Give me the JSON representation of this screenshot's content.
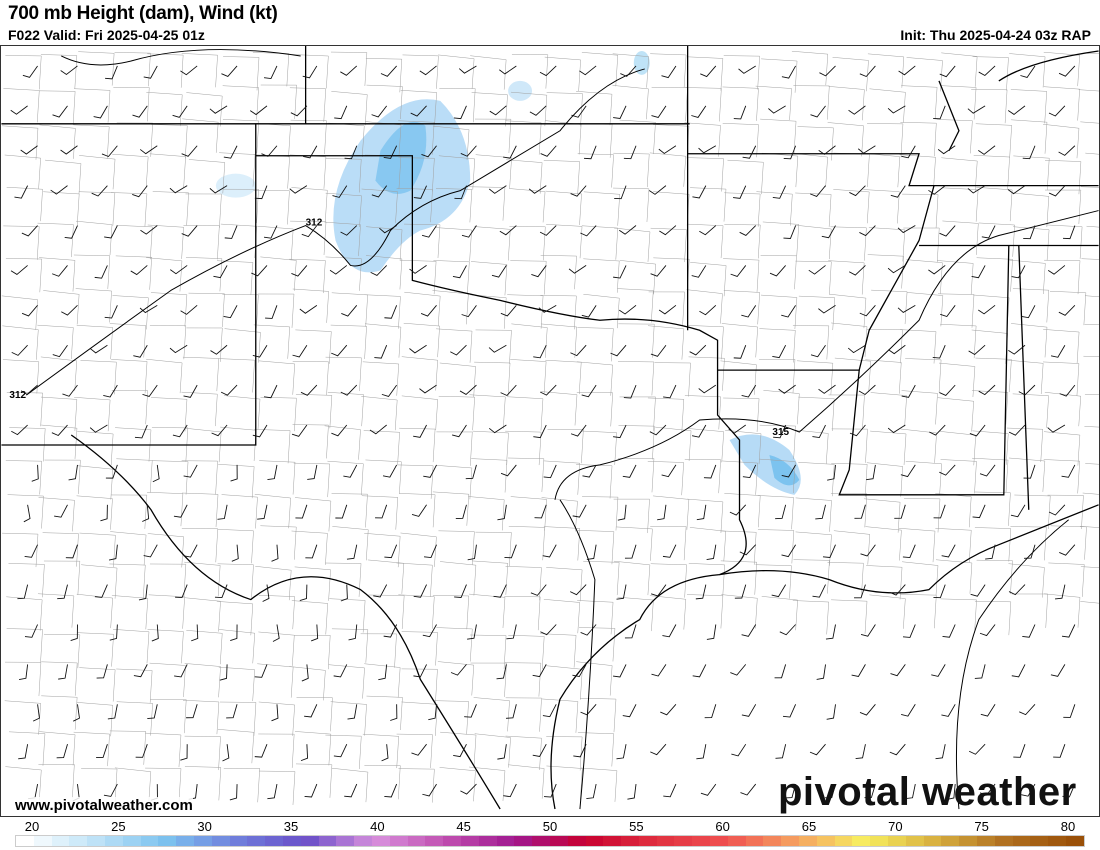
{
  "header": {
    "title": "700 mb Height (dam), Wind (kt)",
    "valid": "F022 Valid: Fri 2025-04-25 01z",
    "init": "Init: Thu 2025-04-24 03z RAP"
  },
  "map": {
    "contour_labels": [
      {
        "text": "312"
      },
      {
        "text": "312"
      },
      {
        "text": "315"
      }
    ],
    "contour_color": "#000000",
    "border_color": "#000000",
    "county_color": "#9a9a9a",
    "wind_units": "kt"
  },
  "branding": {
    "url": "www.pivotalweather.com",
    "logo": "pivotal weather"
  },
  "colorbar": {
    "ticks": [
      "20",
      "25",
      "30",
      "35",
      "40",
      "45",
      "50",
      "55",
      "60",
      "65",
      "70",
      "75",
      "80"
    ],
    "range": [
      20,
      80
    ],
    "anchor_colors": [
      "#ffffff",
      "#bfe3f7",
      "#7cc3ef",
      "#6f7fdc",
      "#6a4fc8",
      "#d890dd",
      "#c050b0",
      "#a01890",
      "#c80030",
      "#e03040",
      "#ef5050",
      "#f5a060",
      "#f7ef60",
      "#d8b040",
      "#b07020",
      "#9a5008"
    ]
  }
}
